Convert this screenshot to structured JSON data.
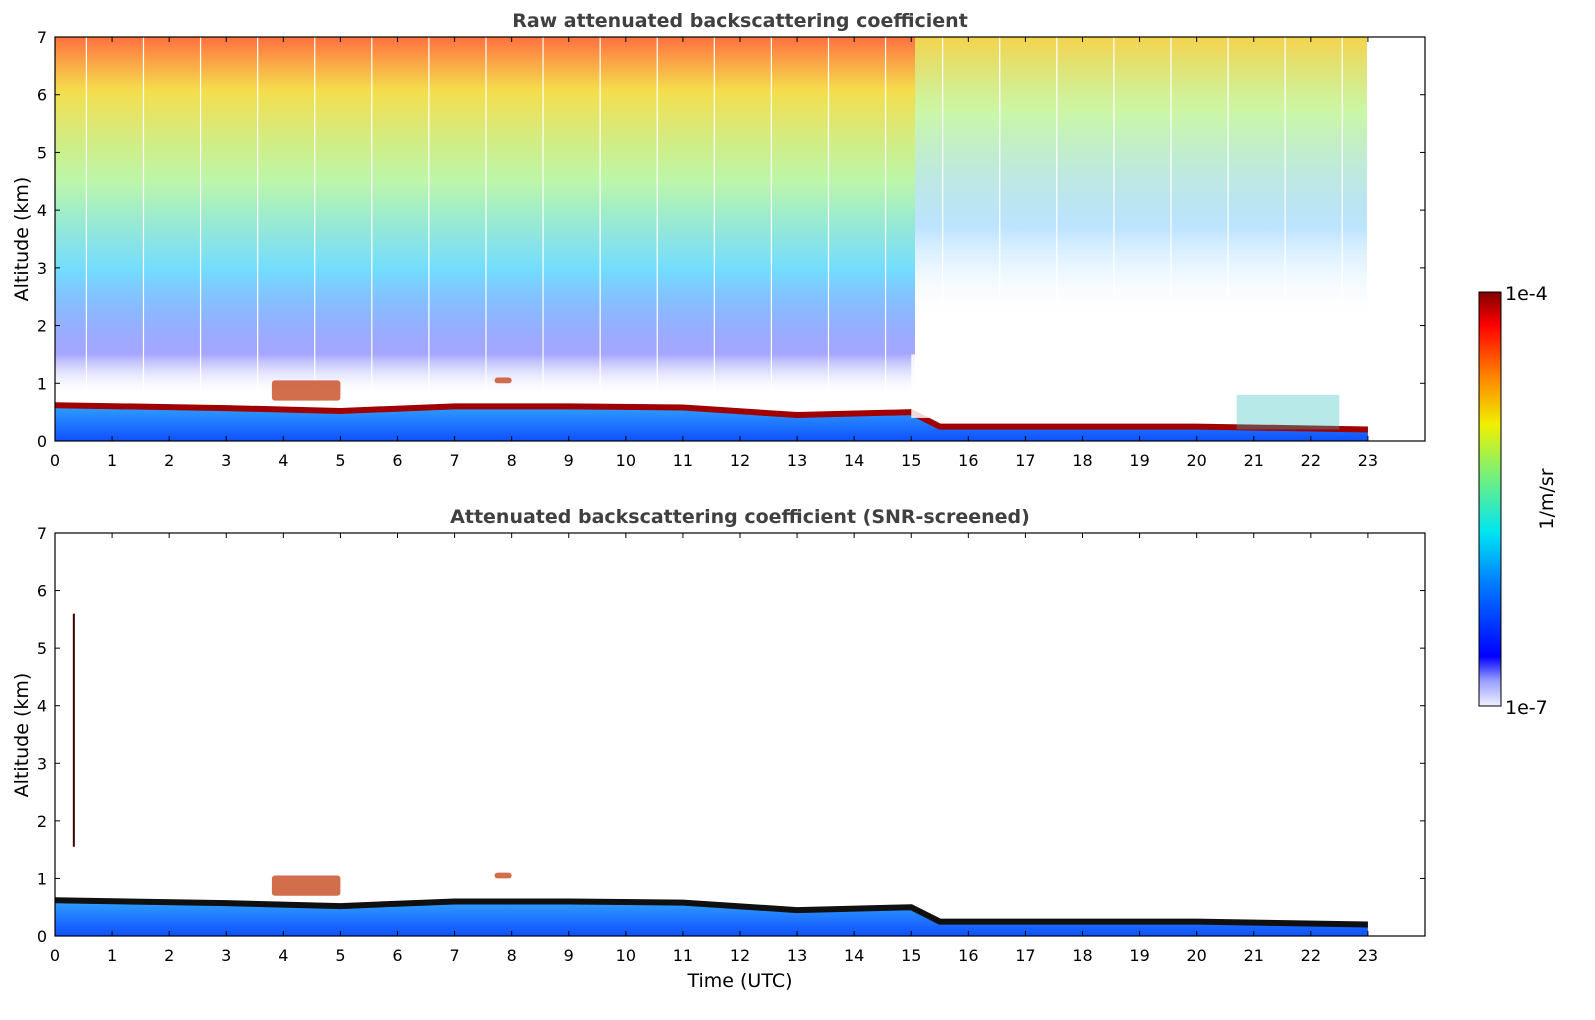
{
  "chart_data": [
    {
      "type": "heatmap",
      "title": "Raw attenuated backscattering coefficient",
      "xlabel": "",
      "ylabel": "Altitude (km)",
      "xlim": [
        0,
        24
      ],
      "ylim": [
        0,
        7
      ],
      "xticks": [
        "0",
        "1",
        "2",
        "3",
        "4",
        "5",
        "6",
        "7",
        "8",
        "9",
        "10",
        "11",
        "12",
        "13",
        "14",
        "15",
        "16",
        "17",
        "18",
        "19",
        "20",
        "21",
        "22",
        "23"
      ],
      "yticks": [
        "0",
        "1",
        "2",
        "3",
        "4",
        "5",
        "6",
        "7"
      ],
      "data_end_time": 23,
      "boundary_layer_top_km": [
        {
          "t": 0,
          "z": 0.62
        },
        {
          "t": 3,
          "z": 0.57
        },
        {
          "t": 5,
          "z": 0.52
        },
        {
          "t": 7,
          "z": 0.6
        },
        {
          "t": 9,
          "z": 0.6
        },
        {
          "t": 11,
          "z": 0.58
        },
        {
          "t": 13,
          "z": 0.45
        },
        {
          "t": 15,
          "z": 0.5
        },
        {
          "t": 15.5,
          "z": 0.25
        },
        {
          "t": 18,
          "z": 0.25
        },
        {
          "t": 20,
          "z": 0.25
        },
        {
          "t": 23,
          "z": 0.2
        }
      ],
      "features": [
        {
          "name": "aerosol layer",
          "t_start": 3.8,
          "t_end": 5.0,
          "z_start": 0.7,
          "z_end": 1.05
        },
        {
          "name": "aerosol layer",
          "t_start": 7.7,
          "t_end": 8.0,
          "z_start": 1.0,
          "z_end": 1.1
        },
        {
          "name": "signal-free region",
          "t_start": 15,
          "t_end": 23,
          "z_start": 0.4,
          "z_end": 1.5
        },
        {
          "name": "plume",
          "t_start": 20.7,
          "t_end": 22.5,
          "z_start": 0.2,
          "z_end": 0.8
        }
      ]
    },
    {
      "type": "heatmap",
      "title": "Attenuated backscattering coefficient (SNR-screened)",
      "xlabel": "Time (UTC)",
      "ylabel": "Altitude (km)",
      "xlim": [
        0,
        24
      ],
      "ylim": [
        0,
        7
      ],
      "xticks": [
        "0",
        "1",
        "2",
        "3",
        "4",
        "5",
        "6",
        "7",
        "8",
        "9",
        "10",
        "11",
        "12",
        "13",
        "14",
        "15",
        "16",
        "17",
        "18",
        "19",
        "20",
        "21",
        "22",
        "23"
      ],
      "yticks": [
        "0",
        "1",
        "2",
        "3",
        "4",
        "5",
        "6",
        "7"
      ],
      "data_end_time": 23,
      "features": [
        {
          "name": "vertical streak",
          "t": 0.33,
          "z_start": 1.55,
          "z_end": 5.6
        },
        {
          "name": "aerosol layer",
          "t_start": 3.8,
          "t_end": 5.0,
          "z_start": 0.7,
          "z_end": 1.05
        },
        {
          "name": "aerosol layer",
          "t_start": 7.7,
          "t_end": 8.0,
          "z_start": 1.0,
          "z_end": 1.1
        }
      ]
    }
  ],
  "colorbar": {
    "label": "1/m/sr",
    "max_label": "1e-4",
    "min_label": "1e-7",
    "scale": "log",
    "colormap": "jet"
  }
}
